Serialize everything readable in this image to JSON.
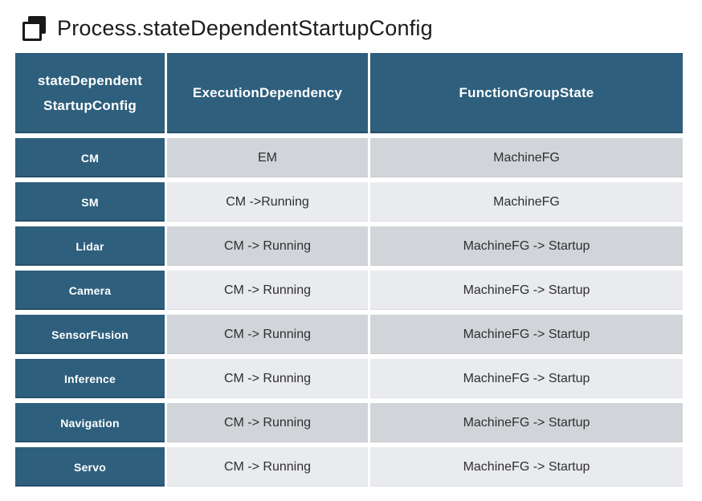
{
  "title": {
    "icon": "shadowed-square-icon",
    "text": "Process.stateDependentStartupConfig"
  },
  "colors": {
    "header_bg": "#2E5F7D",
    "header_text": "#FFFFFF",
    "row_dark_bg": "#D1D5D9",
    "row_light_bg": "#E9EBEE",
    "body_text": "#2F2F2F"
  },
  "table": {
    "header": {
      "col1_lines": [
        "stateDependent",
        "StartupConfig"
      ],
      "col2": "ExecutionDependency",
      "col3": "FunctionGroupState"
    },
    "rows": [
      {
        "name": "CM",
        "execution_dependency": "EM",
        "function_group_state": "MachineFG"
      },
      {
        "name": "SM",
        "execution_dependency": "CM ->Running",
        "function_group_state": "MachineFG"
      },
      {
        "name": "Lidar",
        "execution_dependency": "CM -> Running",
        "function_group_state": "MachineFG -> Startup"
      },
      {
        "name": "Camera",
        "execution_dependency": "CM -> Running",
        "function_group_state": "MachineFG -> Startup"
      },
      {
        "name": "SensorFusion",
        "execution_dependency": "CM -> Running",
        "function_group_state": "MachineFG -> Startup"
      },
      {
        "name": "Inference",
        "execution_dependency": "CM -> Running",
        "function_group_state": "MachineFG -> Startup"
      },
      {
        "name": "Navigation",
        "execution_dependency": "CM -> Running",
        "function_group_state": "MachineFG -> Startup"
      },
      {
        "name": "Servo",
        "execution_dependency": "CM -> Running",
        "function_group_state": "MachineFG -> Startup"
      }
    ]
  }
}
